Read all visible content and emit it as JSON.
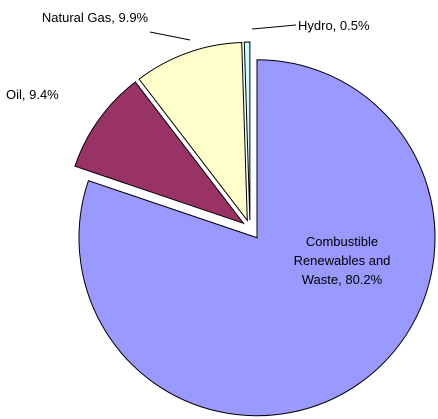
{
  "chart_data": {
    "type": "pie",
    "values": [
      80.2,
      9.4,
      9.9,
      0.5
    ],
    "value_labels": [
      "Combustible Renewables and Waste, 80.2%",
      "Oil, 9.4%",
      "Natural Gas, 9.9%",
      "Hydro, 0.5%"
    ],
    "colors": [
      "#9999ff",
      "#993366",
      "#ffffcc",
      "#ccffff"
    ]
  }
}
